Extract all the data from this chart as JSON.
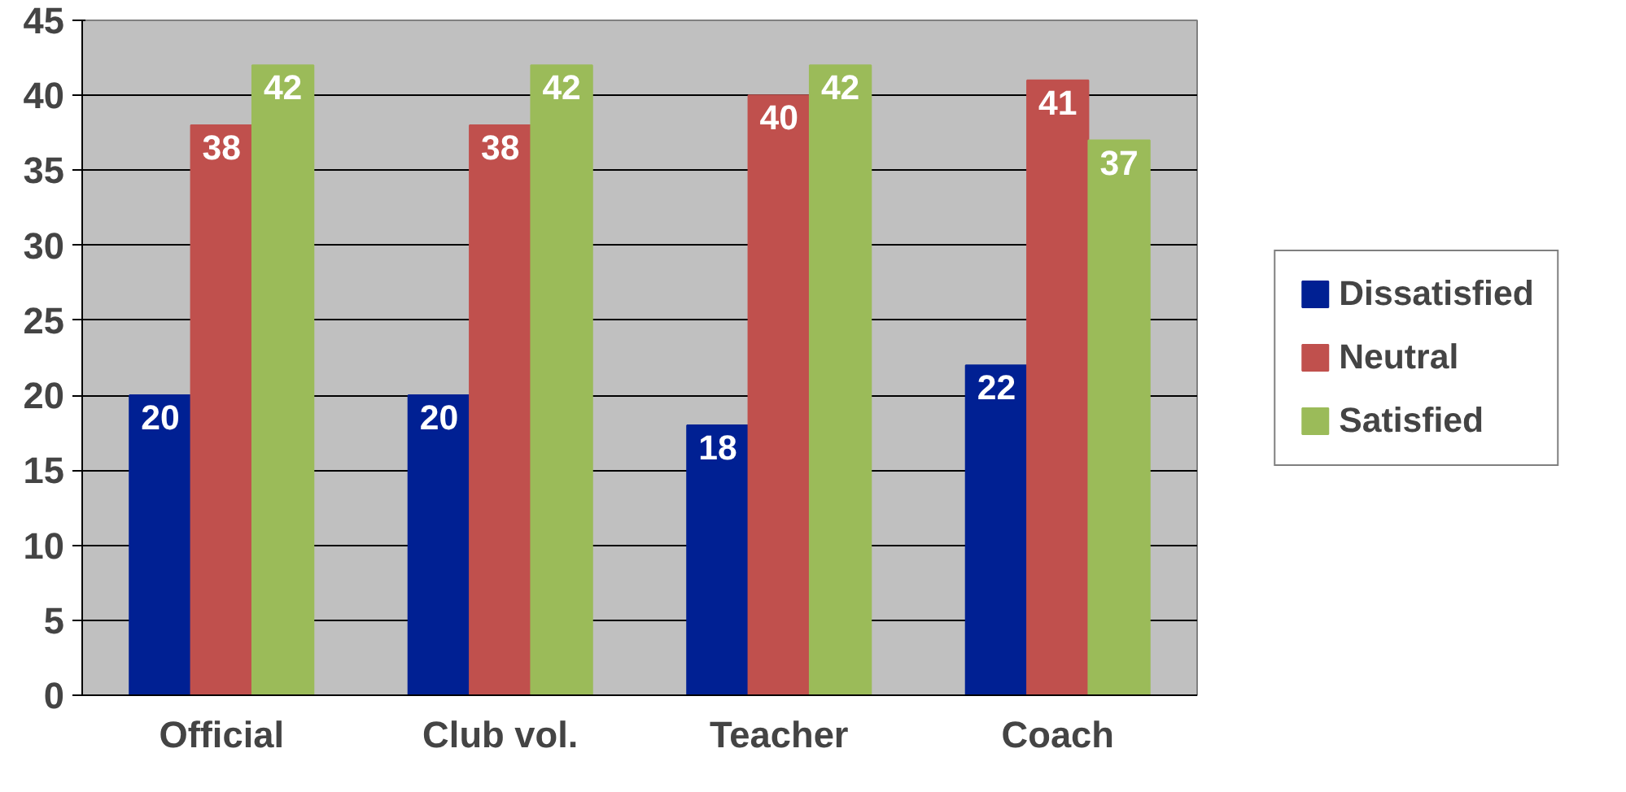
{
  "chart_data": {
    "type": "bar",
    "categories": [
      "Official",
      "Club vol.",
      "Teacher",
      "Coach"
    ],
    "series": [
      {
        "name": "Dissatisfied",
        "color": "#002093",
        "values": [
          20,
          20,
          18,
          22
        ]
      },
      {
        "name": "Neutral",
        "color": "#c0504d",
        "values": [
          38,
          38,
          40,
          41
        ]
      },
      {
        "name": "Satisfied",
        "color": "#9bbb59",
        "values": [
          42,
          42,
          42,
          37
        ]
      }
    ],
    "ylim": [
      0,
      45
    ],
    "yticks": [
      0,
      5,
      10,
      15,
      20,
      25,
      30,
      35,
      40,
      45
    ],
    "grid": "y",
    "legend": "right",
    "data_labels": true
  }
}
